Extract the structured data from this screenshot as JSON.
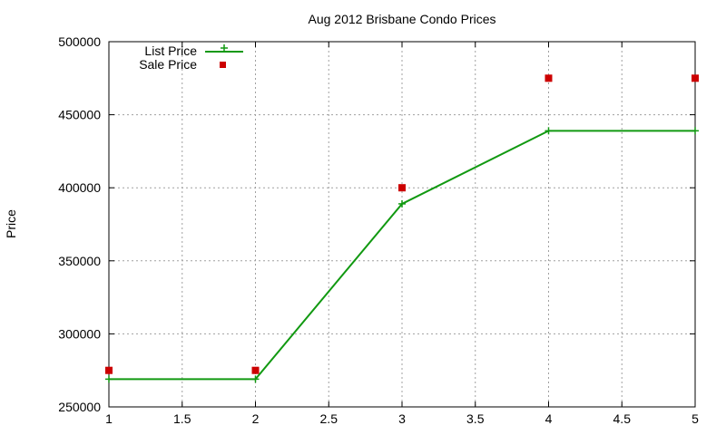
{
  "chart_data": {
    "type": "line",
    "title": "Aug 2012 Brisbane Condo Prices",
    "xlabel": "",
    "ylabel": "Price",
    "xlim": [
      1,
      5
    ],
    "ylim": [
      250000,
      500000
    ],
    "xticks": [
      "1",
      "1.5",
      "2",
      "2.5",
      "3",
      "3.5",
      "4",
      "4.5",
      "5"
    ],
    "xtick_values": [
      1,
      1.5,
      2,
      2.5,
      3,
      3.5,
      4,
      4.5,
      5
    ],
    "yticks": [
      "250000",
      "300000",
      "350000",
      "400000",
      "450000",
      "500000"
    ],
    "ytick_values": [
      250000,
      300000,
      350000,
      400000,
      450000,
      500000
    ],
    "grid": true,
    "legend_position": "top-left",
    "series": [
      {
        "name": "List Price",
        "style": "line-with-plus-markers",
        "color": "#119911",
        "x": [
          1,
          2,
          3,
          4,
          5
        ],
        "y": [
          269000,
          269000,
          389000,
          439000,
          439000
        ]
      },
      {
        "name": "Sale Price",
        "style": "square-markers",
        "color": "#cc0000",
        "x": [
          1,
          2,
          3,
          4,
          5
        ],
        "y": [
          275000,
          275000,
          400000,
          475000,
          475000
        ]
      }
    ]
  }
}
